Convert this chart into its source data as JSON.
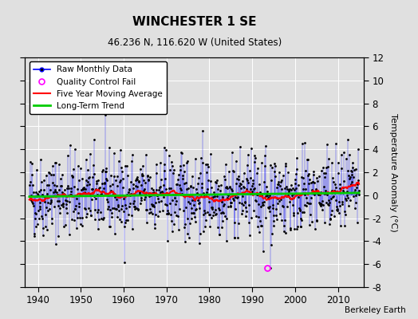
{
  "title": "WINCHESTER 1 SE",
  "subtitle": "46.236 N, 116.620 W (United States)",
  "ylabel": "Temperature Anomaly (°C)",
  "credit": "Berkeley Earth",
  "xlim": [
    1937,
    2016
  ],
  "ylim": [
    -8,
    12
  ],
  "yticks": [
    -8,
    -6,
    -4,
    -2,
    0,
    2,
    4,
    6,
    8,
    10,
    12
  ],
  "xticks": [
    1940,
    1950,
    1960,
    1970,
    1980,
    1990,
    2000,
    2010
  ],
  "start_year": 1938,
  "end_year": 2014,
  "n_months": 912,
  "raw_color": "#0000FF",
  "ma_color": "#FF0000",
  "trend_color": "#00CC00",
  "qc_color": "#FF00FF",
  "dot_color": "#000000",
  "bg_color": "#E0E0E0",
  "grid_color": "#FFFFFF",
  "random_seed": 42,
  "qc_fail_year": 1993.5,
  "qc_fail_value": -6.3
}
